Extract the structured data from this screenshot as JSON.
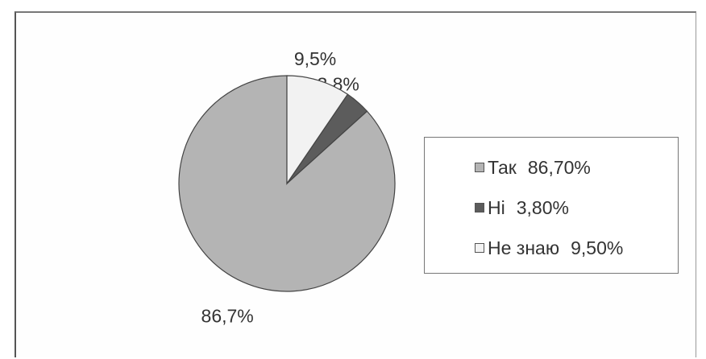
{
  "chart_data": {
    "type": "pie",
    "slices": [
      {
        "name": "Так",
        "value": 86.7,
        "label": "86,7%",
        "legend_value": "86,70%",
        "color": "#b4b4b4"
      },
      {
        "name": "Ні",
        "value": 3.8,
        "label": "3,8%",
        "legend_value": "3,80%",
        "color": "#5c5c5c"
      },
      {
        "name": "Не знаю",
        "value": 9.5,
        "label": "9,5%",
        "legend_value": "9,50%",
        "color": "#f2f2f2"
      }
    ],
    "start_angle_deg": 0,
    "direction": "counterclockwise",
    "legend_position": "right"
  }
}
